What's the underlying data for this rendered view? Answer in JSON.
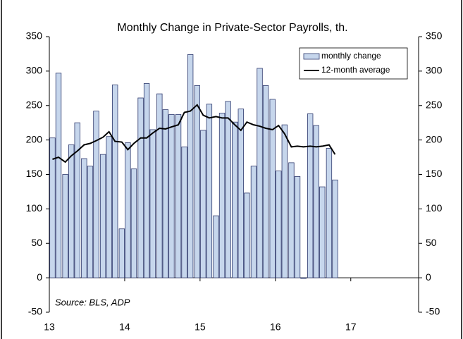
{
  "chart_data": {
    "type": "bar",
    "title": "Monthly Change in Private-Sector Payrolls, th.",
    "annotation": "Source: BLS, ADP",
    "x": [
      13,
      13.08,
      13.17,
      13.25,
      13.33,
      13.42,
      13.5,
      13.58,
      13.67,
      13.75,
      13.83,
      13.92,
      14,
      14.08,
      14.17,
      14.25,
      14.33,
      14.42,
      14.5,
      14.58,
      14.67,
      14.75,
      14.83,
      14.92,
      15,
      15.08,
      15.17,
      15.25,
      15.33,
      15.42,
      15.5,
      15.58,
      15.67,
      15.75,
      15.83,
      15.92,
      16,
      16.08,
      16.17,
      16.25,
      16.33,
      16.42,
      16.5,
      16.58,
      16.67,
      16.75
    ],
    "series": [
      {
        "name": "monthly change",
        "type": "bar",
        "color": "#c6d6ec",
        "edge": "#2f3a6e",
        "values": [
          203,
          297,
          150,
          193,
          225,
          173,
          162,
          242,
          179,
          205,
          280,
          71,
          196,
          158,
          261,
          282,
          215,
          267,
          244,
          237,
          237,
          190,
          324,
          279,
          214,
          252,
          90,
          239,
          256,
          226,
          245,
          123,
          162,
          304,
          279,
          259,
          155,
          222,
          167,
          147,
          -1,
          238,
          221,
          132,
          188,
          142
        ]
      },
      {
        "name": "12-month average",
        "type": "line",
        "color": "#000000",
        "values": [
          172,
          175,
          168,
          177,
          184,
          193,
          195,
          199,
          204,
          212,
          198,
          197,
          186,
          195,
          203,
          203,
          210,
          217,
          216,
          219,
          222,
          240,
          242,
          251,
          236,
          232,
          234,
          232,
          232,
          222,
          214,
          226,
          222,
          220,
          217,
          215,
          221,
          209,
          190,
          191,
          190,
          191,
          190,
          191,
          193,
          179
        ]
      }
    ],
    "xlim": [
      13,
      17.9
    ],
    "xticks": [
      13,
      14,
      15,
      16,
      17
    ],
    "ylim": [
      -50,
      350
    ],
    "yticks": [
      -50,
      0,
      50,
      100,
      150,
      200,
      250,
      300,
      350
    ],
    "y2lim": [
      -50,
      350
    ],
    "y2ticks": [
      -50,
      0,
      50,
      100,
      150,
      200,
      250,
      300,
      350
    ],
    "legend": "top-right",
    "grid": false
  }
}
